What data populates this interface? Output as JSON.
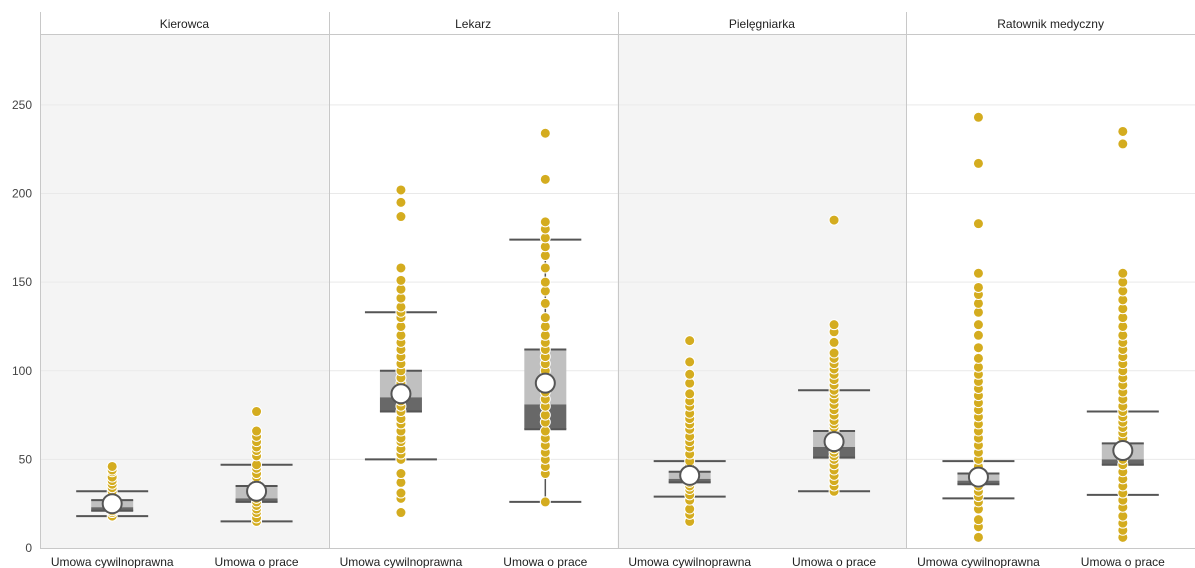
{
  "chart_data": {
    "type": "boxplot",
    "title": "",
    "xlabel": "",
    "ylabel": "",
    "ylim": [
      0,
      290
    ],
    "y_ticks": [
      0,
      50,
      100,
      150,
      200,
      250
    ],
    "grid": true,
    "colors": {
      "point": "#d4ac1f",
      "box_upper": "#c0c0c0",
      "box_lower": "#686868",
      "whisker": "#555555",
      "mean_fill": "#ffffff",
      "mean_stroke": "#555555",
      "panel_shade": "#f4f4f4",
      "grid": "#e9e9e9",
      "divider": "#c8c8c8"
    },
    "panels": [
      {
        "title": "Kierowca",
        "groups": [
          {
            "label": "Umowa cywilnoprawna",
            "whisker_low": 18,
            "q1": 21,
            "median": 23,
            "q3": 27,
            "whisker_high": 32,
            "mean": 25,
            "points": [
              18,
              20,
              21,
              22,
              23,
              24,
              25,
              26,
              27,
              28,
              29,
              30,
              32,
              34,
              36,
              38,
              40,
              43,
              44,
              46
            ]
          },
          {
            "label": "Umowa o prace",
            "whisker_low": 15,
            "q1": 26,
            "median": 28,
            "q3": 35,
            "whisker_high": 47,
            "mean": 32,
            "points": [
              15,
              17,
              20,
              22,
              24,
              26,
              28,
              30,
              32,
              35,
              37,
              40,
              42,
              45,
              47,
              52,
              55,
              57,
              60,
              63,
              66,
              77
            ]
          }
        ]
      },
      {
        "title": "Lekarz",
        "groups": [
          {
            "label": "Umowa cywilnoprawna",
            "whisker_low": 50,
            "q1": 77,
            "median": 85,
            "q3": 100,
            "whisker_high": 133,
            "mean": 87,
            "points": [
              20,
              28,
              31,
              37,
              42,
              50,
              53,
              56,
              60,
              62,
              66,
              70,
              73,
              77,
              80,
              83,
              85,
              88,
              90,
              93,
              96,
              100,
              104,
              108,
              112,
              116,
              120,
              125,
              130,
              133,
              136,
              141,
              146,
              151,
              158,
              187,
              195,
              202
            ]
          },
          {
            "label": "Umowa o prace",
            "whisker_low": 26,
            "q1": 67,
            "median": 81,
            "q3": 112,
            "whisker_high": 174,
            "mean": 93,
            "points": [
              26,
              42,
              46,
              50,
              54,
              58,
              62,
              66,
              71,
              75,
              80,
              84,
              88,
              92,
              96,
              100,
              104,
              108,
              112,
              116,
              120,
              125,
              130,
              138,
              145,
              150,
              158,
              165,
              170,
              175,
              180,
              184,
              208,
              234
            ]
          }
        ]
      },
      {
        "title": "Pielęgniarka",
        "groups": [
          {
            "label": "Umowa cywilnoprawna",
            "whisker_low": 29,
            "q1": 37,
            "median": 39,
            "q3": 43,
            "whisker_high": 49,
            "mean": 41,
            "points": [
              15,
              19,
              22,
              27,
              30,
              33,
              35,
              37,
              38,
              39,
              40,
              41,
              43,
              45,
              47,
              49,
              53,
              57,
              60,
              63,
              67,
              70,
              73,
              76,
              80,
              83,
              87,
              93,
              98,
              105,
              117
            ]
          },
          {
            "label": "Umowa o prace",
            "whisker_low": 32,
            "q1": 51,
            "median": 57,
            "q3": 66,
            "whisker_high": 89,
            "mean": 60,
            "points": [
              32,
              35,
              38,
              41,
              44,
              47,
              50,
              52,
              54,
              56,
              58,
              60,
              62,
              64,
              66,
              68,
              70,
              72,
              75,
              78,
              81,
              84,
              87,
              89,
              92,
              95,
              98,
              101,
              104,
              107,
              110,
              116,
              122,
              126,
              185
            ]
          }
        ]
      },
      {
        "title": "Ratownik medyczny",
        "groups": [
          {
            "label": "Umowa cywilnoprawna",
            "whisker_low": 28,
            "q1": 36,
            "median": 38,
            "q3": 42,
            "whisker_high": 49,
            "mean": 40,
            "points": [
              6,
              12,
              16,
              22,
              26,
              29,
              32,
              35,
              37,
              39,
              41,
              43,
              46,
              50,
              54,
              58,
              62,
              66,
              70,
              74,
              78,
              82,
              86,
              90,
              94,
              98,
              102,
              107,
              113,
              120,
              126,
              133,
              138,
              143,
              147,
              155,
              183,
              217,
              243
            ]
          },
          {
            "label": "Umowa o prace",
            "whisker_low": 30,
            "q1": 47,
            "median": 50,
            "q3": 59,
            "whisker_high": 77,
            "mean": 55,
            "points": [
              6,
              10,
              14,
              18,
              23,
              27,
              31,
              35,
              39,
              43,
              47,
              50,
              53,
              56,
              59,
              62,
              65,
              68,
              71,
              74,
              77,
              80,
              84,
              88,
              92,
              96,
              100,
              104,
              108,
              112,
              116,
              120,
              125,
              130,
              135,
              140,
              145,
              150,
              155,
              228,
              235
            ]
          }
        ]
      }
    ]
  }
}
